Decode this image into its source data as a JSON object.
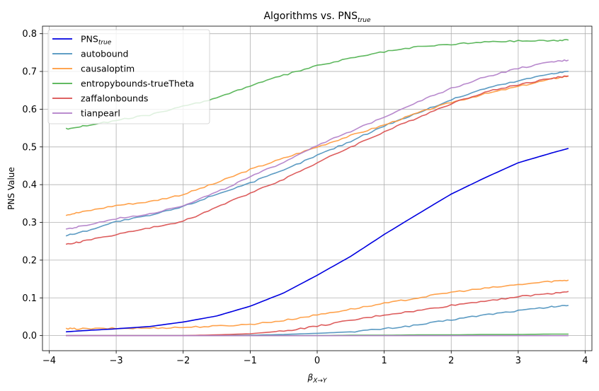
{
  "chart_data": {
    "type": "line",
    "title": {
      "main": "Algorithms vs. PNS",
      "sub": "true"
    },
    "xlabel": {
      "main": "β",
      "sub": "X→Y"
    },
    "ylabel": "PNS Value",
    "xlim": [
      -4.1,
      4.1
    ],
    "ylim": [
      -0.04,
      0.82
    ],
    "xticks": [
      -4,
      -3,
      -2,
      -1,
      0,
      1,
      2,
      3,
      4
    ],
    "xtick_labels": [
      "−4",
      "−3",
      "−2",
      "−1",
      "0",
      "1",
      "2",
      "3",
      "4"
    ],
    "yticks": [
      0.0,
      0.1,
      0.2,
      0.3,
      0.4,
      0.5,
      0.6,
      0.7,
      0.8
    ],
    "ytick_labels": [
      "0.0",
      "0.1",
      "0.2",
      "0.3",
      "0.4",
      "0.5",
      "0.6",
      "0.7",
      "0.8"
    ],
    "grid": true,
    "legend_position": "top-left",
    "x": [
      -3.75,
      -3.5,
      -3.0,
      -2.5,
      -2.0,
      -1.5,
      -1.0,
      -0.5,
      0.0,
      0.5,
      1.0,
      1.5,
      2.0,
      2.5,
      3.0,
      3.5,
      3.75
    ],
    "series": [
      {
        "name": "PNS",
        "name_sub": "true",
        "color": "#0000e0",
        "kind": "pns",
        "values": [
          0.01,
          0.013,
          0.018,
          0.024,
          0.036,
          0.052,
          0.078,
          0.113,
          0.16,
          0.21,
          0.268,
          0.322,
          0.375,
          0.418,
          0.458,
          0.484,
          0.496
        ]
      },
      {
        "name": "autobound",
        "color": "#4a90bd",
        "kind": "upper",
        "values": [
          0.265,
          0.275,
          0.302,
          0.318,
          0.342,
          0.375,
          0.405,
          0.438,
          0.478,
          0.515,
          0.556,
          0.59,
          0.625,
          0.655,
          0.675,
          0.695,
          0.7
        ]
      },
      {
        "name": "autobound",
        "color": "#4a90bd",
        "kind": "lower",
        "values": [
          0.0,
          0.0,
          0.0,
          0.0,
          0.0,
          0.0,
          0.001,
          0.003,
          0.006,
          0.01,
          0.018,
          0.028,
          0.042,
          0.055,
          0.066,
          0.076,
          0.08
        ]
      },
      {
        "name": "causaloptim",
        "color": "#ff9838",
        "kind": "upper",
        "values": [
          0.32,
          0.328,
          0.345,
          0.355,
          0.374,
          0.405,
          0.44,
          0.47,
          0.5,
          0.53,
          0.558,
          0.59,
          0.618,
          0.64,
          0.66,
          0.68,
          0.688
        ]
      },
      {
        "name": "causaloptim",
        "color": "#ff9838",
        "kind": "lower",
        "values": [
          0.018,
          0.018,
          0.019,
          0.02,
          0.022,
          0.025,
          0.03,
          0.04,
          0.055,
          0.07,
          0.085,
          0.1,
          0.115,
          0.125,
          0.135,
          0.144,
          0.147
        ]
      },
      {
        "name": "entropybounds-trueTheta",
        "color": "#4cb04c",
        "kind": "upper",
        "values": [
          0.548,
          0.555,
          0.57,
          0.585,
          0.607,
          0.63,
          0.662,
          0.69,
          0.715,
          0.735,
          0.752,
          0.765,
          0.772,
          0.778,
          0.781,
          0.782,
          0.783
        ]
      },
      {
        "name": "entropybounds-trueTheta",
        "color": "#4cb04c",
        "kind": "lower",
        "values": [
          0.0,
          0.0,
          0.0,
          0.0,
          0.0,
          0.0,
          0.0,
          0.0,
          0.0,
          0.001,
          0.001,
          0.002,
          0.002,
          0.003,
          0.003,
          0.004,
          0.004
        ]
      },
      {
        "name": "zaffalonbounds",
        "color": "#d94b4b",
        "kind": "upper",
        "values": [
          0.241,
          0.25,
          0.268,
          0.285,
          0.303,
          0.34,
          0.378,
          0.415,
          0.458,
          0.5,
          0.54,
          0.578,
          0.615,
          0.645,
          0.665,
          0.682,
          0.688
        ]
      },
      {
        "name": "zaffalonbounds",
        "color": "#d94b4b",
        "kind": "lower",
        "values": [
          0.0,
          0.0,
          0.0,
          0.0,
          0.0,
          0.002,
          0.005,
          0.012,
          0.025,
          0.04,
          0.055,
          0.066,
          0.08,
          0.092,
          0.103,
          0.112,
          0.117
        ]
      },
      {
        "name": "tianpearl",
        "color": "#b07cc8",
        "kind": "upper",
        "values": [
          0.282,
          0.29,
          0.31,
          0.323,
          0.345,
          0.38,
          0.42,
          0.46,
          0.505,
          0.54,
          0.58,
          0.62,
          0.655,
          0.685,
          0.708,
          0.725,
          0.73
        ]
      },
      {
        "name": "tianpearl",
        "color": "#b07cc8",
        "kind": "lower",
        "values": [
          0.0,
          0.0,
          0.0,
          0.0,
          0.0,
          0.0,
          0.0,
          0.0,
          0.0,
          0.0,
          0.0,
          0.0,
          0.0,
          0.0,
          0.0,
          0.0,
          0.0
        ]
      }
    ],
    "legend": [
      {
        "name": "PNS",
        "sub": "true",
        "color": "#0000e0"
      },
      {
        "name": "autobound",
        "sub": "",
        "color": "#4a90bd"
      },
      {
        "name": "causaloptim",
        "sub": "",
        "color": "#ff9838"
      },
      {
        "name": "entropybounds-trueTheta",
        "sub": "",
        "color": "#4cb04c"
      },
      {
        "name": "zaffalonbounds",
        "sub": "",
        "color": "#d94b4b"
      },
      {
        "name": "tianpearl",
        "sub": "",
        "color": "#b07cc8"
      }
    ]
  }
}
